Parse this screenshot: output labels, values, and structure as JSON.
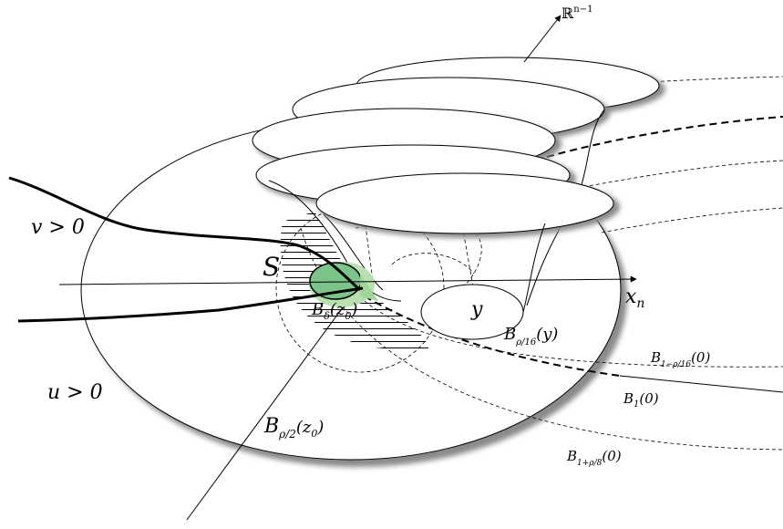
{
  "labels": {
    "rn": "ℝ",
    "rn_sup": "n−1",
    "v_region": "v > 0",
    "u_region": "u > 0",
    "free_boundary": "S",
    "xn": "x",
    "xn_sub": "n",
    "y": "y",
    "b_delta": "B",
    "b_delta_sub": "δ",
    "b_delta_arg": "(z",
    "b_delta_arg_sub": "0",
    "b_delta_close": ")",
    "b_rho16": "B",
    "b_rho16_sub": "ρ/16",
    "b_rho16_arg": "(y)",
    "b_1m": "B",
    "b_1m_sub": "1−ρ/16",
    "b_1m_arg": "(0)",
    "b_1": "B",
    "b_1_sub": "1",
    "b_1_arg": "(0)",
    "b_1p": "B",
    "b_1p_sub": "1+ρ/8",
    "b_1p_arg": "(0)",
    "b_rho2": "B",
    "b_rho2_sub": "ρ/2",
    "b_rho2_arg": "(z",
    "b_rho2_arg_sub": "0",
    "b_rho2_close": ")"
  },
  "colors": {
    "line": "#000000",
    "shadow": "#8a8a8a",
    "green_fill": "#a8d8a0",
    "green_dark": "#6ec27a"
  }
}
